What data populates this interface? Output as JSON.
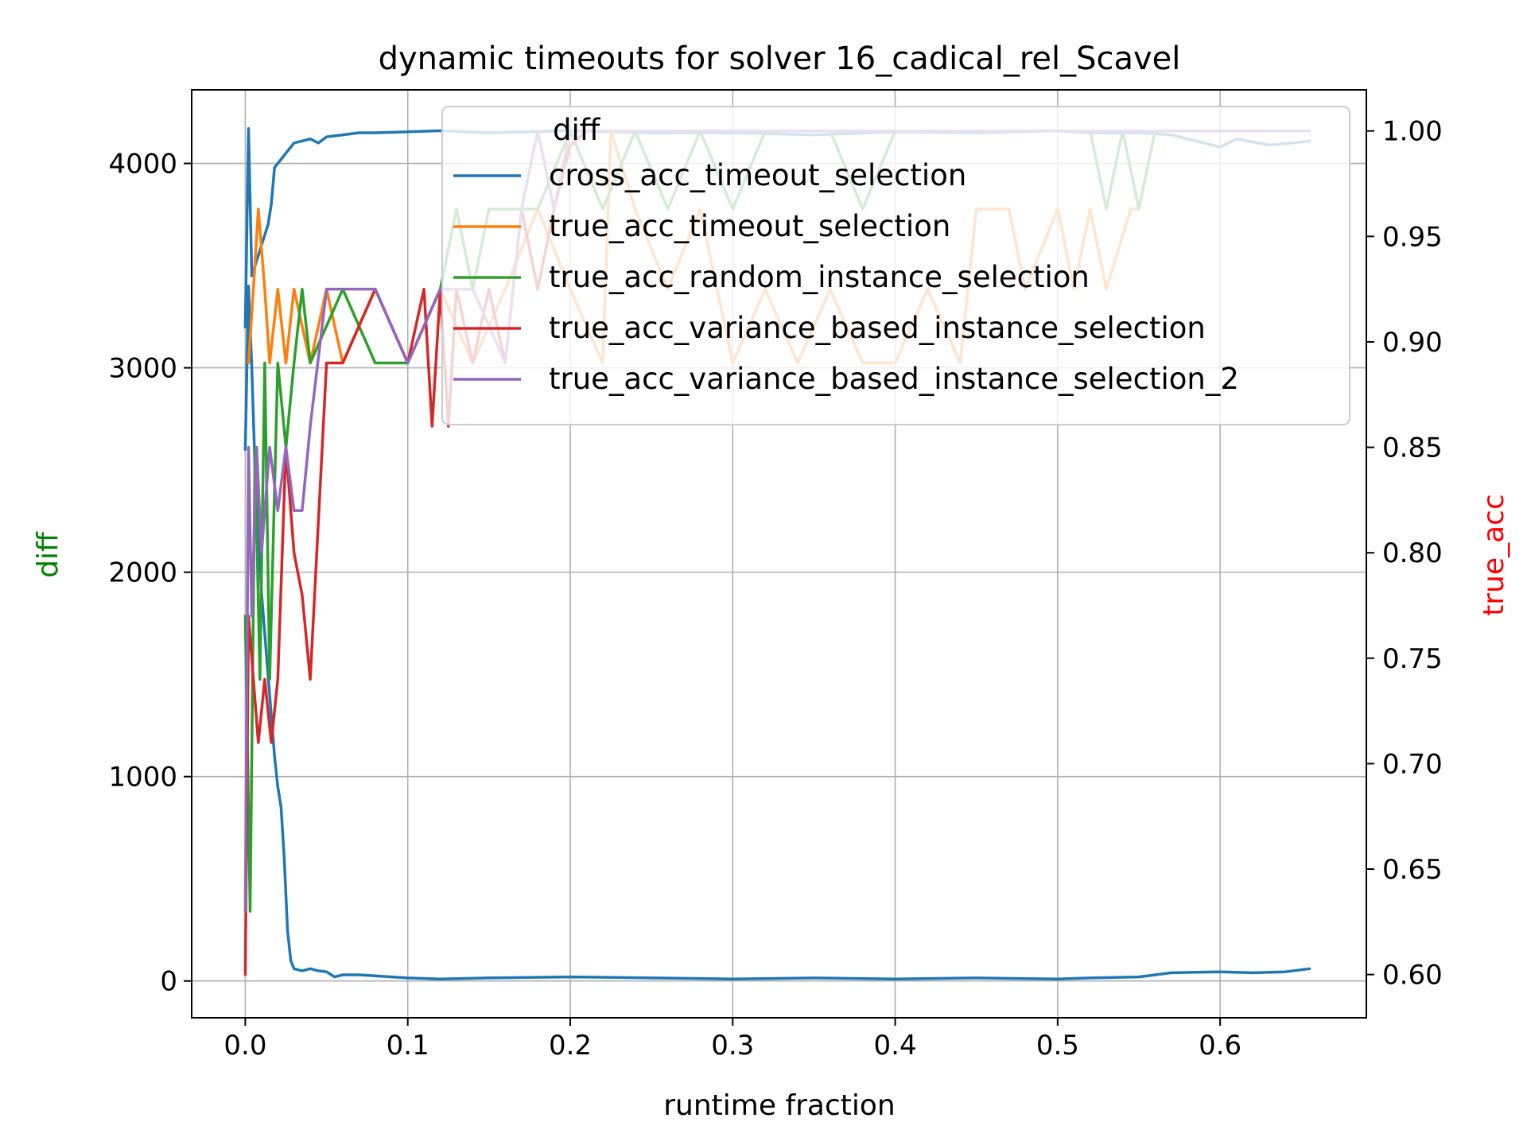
{
  "chart_data": {
    "type": "line",
    "title": "dynamic timeouts for solver 16_cadical_rel_Scavel",
    "xlabel": "runtime fraction",
    "ylabel_left": "diff",
    "ylabel_right": "true_acc",
    "ylabel_left_color": "#008000",
    "ylabel_right_color": "#ff0000",
    "xlim": [
      -0.033,
      0.69
    ],
    "ylim_left": [
      -180,
      4360
    ],
    "ylim_right": [
      0.5795,
      1.0195
    ],
    "xticks": [
      0.0,
      0.1,
      0.2,
      0.3,
      0.4,
      0.5,
      0.6
    ],
    "xtick_labels": [
      "0.0",
      "0.1",
      "0.2",
      "0.3",
      "0.4",
      "0.5",
      "0.6"
    ],
    "yticks_left": [
      0,
      1000,
      2000,
      3000,
      4000
    ],
    "ytick_labels_left": [
      "0",
      "1000",
      "2000",
      "3000",
      "4000"
    ],
    "yticks_right": [
      0.6,
      0.65,
      0.7,
      0.75,
      0.8,
      0.85,
      0.9,
      0.95,
      1.0
    ],
    "ytick_labels_right": [
      "0.60",
      "0.65",
      "0.70",
      "0.75",
      "0.80",
      "0.85",
      "0.90",
      "0.95",
      "1.00"
    ],
    "grid": true,
    "legend": {
      "placement": "upper right",
      "title": "diff",
      "entries": [
        {
          "label": "cross_acc_timeout_selection",
          "color": "#1f77b4"
        },
        {
          "label": "true_acc_timeout_selection",
          "color": "#ff7f0e"
        },
        {
          "label": "true_acc_random_instance_selection",
          "color": "#2ca02c"
        },
        {
          "label": "true_acc_variance_based_instance_selection",
          "color": "#d62728"
        },
        {
          "label": "true_acc_variance_based_instance_selection_2",
          "color": "#9467bd"
        }
      ]
    },
    "series": [
      {
        "name": "diff",
        "axis": "left",
        "color": "#1f77b4",
        "x": [
          0.0,
          0.002,
          0.004,
          0.006,
          0.008,
          0.01,
          0.012,
          0.014,
          0.016,
          0.018,
          0.02,
          0.022,
          0.024,
          0.026,
          0.028,
          0.03,
          0.035,
          0.04,
          0.045,
          0.05,
          0.055,
          0.06,
          0.07,
          0.08,
          0.09,
          0.1,
          0.12,
          0.15,
          0.2,
          0.25,
          0.3,
          0.35,
          0.4,
          0.45,
          0.5,
          0.52,
          0.55,
          0.57,
          0.6,
          0.62,
          0.64,
          0.655
        ],
        "y": [
          2600,
          3400,
          3000,
          2500,
          2200,
          1900,
          1700,
          1500,
          1300,
          1100,
          950,
          850,
          600,
          250,
          100,
          60,
          50,
          60,
          50,
          45,
          20,
          30,
          30,
          25,
          20,
          15,
          10,
          15,
          20,
          15,
          10,
          15,
          10,
          15,
          10,
          15,
          20,
          40,
          45,
          40,
          45,
          60
        ]
      },
      {
        "name": "diff",
        "axis": "left",
        "color": "#1f77b4",
        "x": [
          0.0,
          0.002,
          0.004,
          0.006,
          0.008,
          0.01,
          0.012,
          0.014,
          0.016,
          0.018,
          0.02,
          0.022,
          0.024,
          0.026,
          0.028,
          0.03,
          0.035,
          0.04,
          0.045,
          0.05,
          0.06,
          0.07,
          0.08,
          0.1,
          0.12,
          0.15,
          0.2,
          0.25,
          0.3,
          0.35,
          0.4,
          0.45,
          0.5,
          0.52,
          0.55,
          0.57,
          0.6,
          0.61,
          0.63,
          0.645,
          0.655
        ],
        "y": [
          3200,
          4170,
          3450,
          3500,
          3550,
          3600,
          3650,
          3700,
          3800,
          3980,
          4000,
          4020,
          4040,
          4060,
          4080,
          4100,
          4110,
          4120,
          4100,
          4130,
          4140,
          4150,
          4150,
          4155,
          4160,
          4150,
          4160,
          4150,
          4150,
          4140,
          4155,
          4150,
          4160,
          4150,
          4150,
          4140,
          4080,
          4120,
          4090,
          4100,
          4110
        ]
      },
      {
        "name": "diff",
        "axis": "right",
        "color": "#ff7f0e",
        "x": [
          0.002,
          0.005,
          0.008,
          0.012,
          0.015,
          0.02,
          0.025,
          0.03,
          0.04,
          0.05,
          0.06,
          0.08,
          0.1,
          0.12,
          0.14,
          0.16,
          0.18,
          0.2,
          0.22,
          0.225,
          0.24,
          0.26,
          0.28,
          0.3,
          0.32,
          0.34,
          0.36,
          0.38,
          0.4,
          0.42,
          0.44,
          0.45,
          0.47,
          0.48,
          0.5,
          0.51,
          0.52,
          0.53,
          0.545,
          0.55,
          0.56,
          0.58,
          0.655
        ],
        "y": [
          0.89,
          0.925,
          0.963,
          0.925,
          0.89,
          0.925,
          0.89,
          0.925,
          0.89,
          0.925,
          0.89,
          0.925,
          0.89,
          0.925,
          0.89,
          0.925,
          0.963,
          0.925,
          0.89,
          1.0,
          0.963,
          0.925,
          0.963,
          0.89,
          0.925,
          0.89,
          0.925,
          0.89,
          0.89,
          0.925,
          0.89,
          0.963,
          0.963,
          0.925,
          0.963,
          0.925,
          0.963,
          0.925,
          0.963,
          0.963,
          1.0,
          1.0,
          1.0
        ]
      },
      {
        "name": "diff",
        "axis": "right",
        "color": "#2ca02c",
        "x": [
          0.0,
          0.003,
          0.006,
          0.009,
          0.012,
          0.015,
          0.02,
          0.025,
          0.03,
          0.035,
          0.04,
          0.06,
          0.08,
          0.1,
          0.12,
          0.13,
          0.14,
          0.15,
          0.16,
          0.18,
          0.2,
          0.22,
          0.24,
          0.26,
          0.28,
          0.3,
          0.32,
          0.34,
          0.36,
          0.38,
          0.4,
          0.45,
          0.5,
          0.52,
          0.53,
          0.54,
          0.55,
          0.56,
          0.655
        ],
        "y": [
          0.77,
          0.63,
          0.85,
          0.74,
          0.89,
          0.74,
          0.89,
          0.85,
          0.89,
          0.925,
          0.89,
          0.925,
          0.89,
          0.89,
          0.925,
          0.963,
          0.925,
          0.963,
          0.963,
          0.963,
          1.0,
          0.963,
          1.0,
          0.963,
          1.0,
          0.963,
          1.0,
          1.0,
          1.0,
          0.963,
          1.0,
          1.0,
          1.0,
          1.0,
          0.963,
          1.0,
          0.963,
          1.0,
          1.0
        ]
      },
      {
        "name": "diff",
        "axis": "right",
        "color": "#d62728",
        "x": [
          0.0,
          0.002,
          0.005,
          0.008,
          0.012,
          0.016,
          0.02,
          0.025,
          0.03,
          0.035,
          0.04,
          0.05,
          0.06,
          0.08,
          0.1,
          0.11,
          0.115,
          0.12,
          0.125,
          0.13,
          0.14,
          0.15,
          0.16,
          0.17,
          0.18,
          0.19,
          0.2,
          0.21,
          0.22,
          0.655
        ],
        "y": [
          0.6,
          0.77,
          0.74,
          0.71,
          0.74,
          0.71,
          0.74,
          0.85,
          0.8,
          0.78,
          0.74,
          0.89,
          0.89,
          0.925,
          0.89,
          0.925,
          0.86,
          0.925,
          0.86,
          0.925,
          0.89,
          0.925,
          0.89,
          0.963,
          0.925,
          0.963,
          0.993,
          1.0,
          1.0,
          1.0
        ]
      },
      {
        "name": "diff",
        "axis": "right",
        "color": "#9467bd",
        "x": [
          0.0,
          0.002,
          0.004,
          0.007,
          0.01,
          0.015,
          0.02,
          0.025,
          0.03,
          0.035,
          0.04,
          0.05,
          0.06,
          0.08,
          0.1,
          0.12,
          0.14,
          0.16,
          0.17,
          0.18,
          0.19,
          0.2,
          0.21,
          0.22,
          0.655
        ],
        "y": [
          0.63,
          0.85,
          0.77,
          0.85,
          0.8,
          0.85,
          0.82,
          0.85,
          0.82,
          0.82,
          0.86,
          0.925,
          0.925,
          0.925,
          0.89,
          0.925,
          0.925,
          0.89,
          0.963,
          1.0,
          0.963,
          1.0,
          1.0,
          1.0,
          1.0
        ]
      }
    ]
  }
}
